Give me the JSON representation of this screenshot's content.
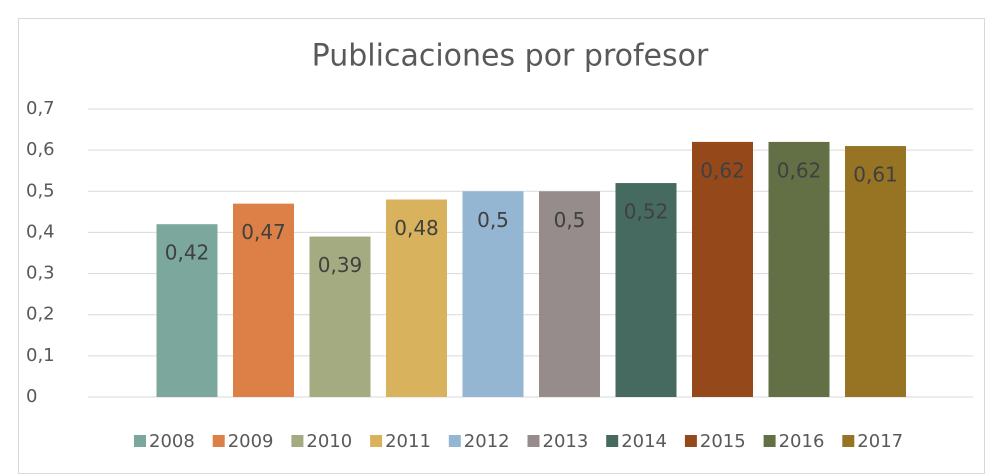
{
  "chart_data": {
    "type": "bar",
    "title": "Publicaciones por profesor",
    "ylim": [
      0,
      0.7
    ],
    "yticks": [
      0,
      {
        "value": 0.1,
        "label": "0,1"
      },
      {
        "value": 0.2,
        "label": "0,2"
      },
      {
        "value": 0.3,
        "label": "0,3"
      },
      {
        "value": 0.4,
        "label": "0,4"
      },
      {
        "value": 0.5,
        "label": "0,5"
      },
      {
        "value": 0.6,
        "label": "0,6"
      },
      {
        "value": 0.7,
        "label": "0,7"
      }
    ],
    "grid": true,
    "legend": "bottom",
    "series": [
      {
        "name": "2008",
        "color": "#7ba79d",
        "values": [
          0.42
        ],
        "value_labels": [
          "0,42"
        ]
      },
      {
        "name": "2009",
        "color": "#dd8047",
        "values": [
          0.47
        ],
        "value_labels": [
          "0,47"
        ]
      },
      {
        "name": "2010",
        "color": "#a5ab81",
        "values": [
          0.39
        ],
        "value_labels": [
          "0,39"
        ]
      },
      {
        "name": "2011",
        "color": "#d8b25c",
        "values": [
          0.48
        ],
        "value_labels": [
          "0,48"
        ]
      },
      {
        "name": "2012",
        "color": "#94b6d2",
        "values": [
          0.5
        ],
        "value_labels": [
          "0,5"
        ]
      },
      {
        "name": "2013",
        "color": "#968c8c",
        "values": [
          0.5
        ],
        "value_labels": [
          "0,5"
        ]
      },
      {
        "name": "2014",
        "color": "#466a60",
        "values": [
          0.52
        ],
        "value_labels": [
          "0,52"
        ]
      },
      {
        "name": "2015",
        "color": "#95491a",
        "values": [
          0.62
        ],
        "value_labels": [
          "0,62"
        ]
      },
      {
        "name": "2016",
        "color": "#637045",
        "values": [
          0.62
        ],
        "value_labels": [
          "0,62"
        ]
      },
      {
        "name": "2017",
        "color": "#967424",
        "values": [
          0.61
        ],
        "value_labels": [
          "0,61"
        ]
      }
    ]
  }
}
